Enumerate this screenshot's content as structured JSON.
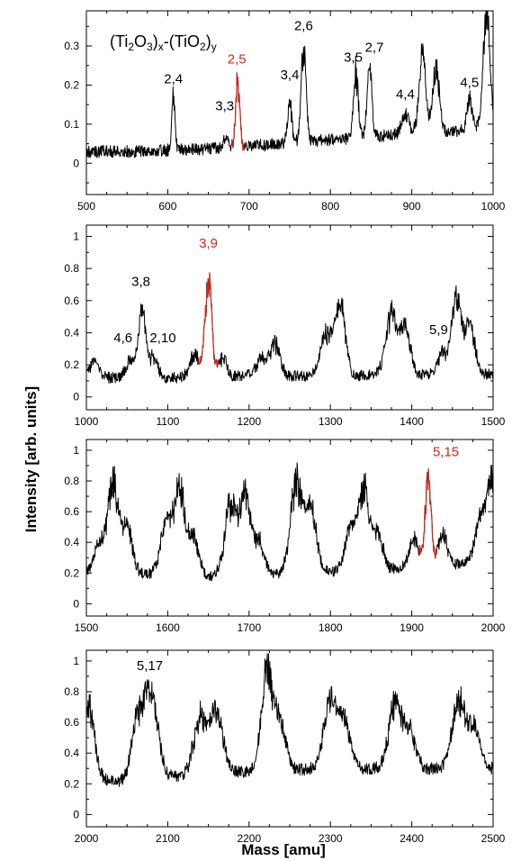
{
  "figure": {
    "ylabel": "Intensity [arb. units]",
    "xlabel": "Mass [amu]",
    "formula": {
      "a": "(Ti",
      "b": "2",
      "c": "O",
      "d": "3",
      "e": ")",
      "f": "x",
      "g": "-(TiO",
      "h": "2",
      "i": ")",
      "j": "y"
    },
    "colors": {
      "trace": "#000000",
      "highlight": "#c8281e"
    }
  },
  "chart_data": [
    {
      "type": "line",
      "xlim": [
        500,
        1000
      ],
      "ylim": [
        -0.08,
        0.39
      ],
      "xticks": [
        500,
        600,
        700,
        800,
        900,
        1000
      ],
      "xtick_labels": [
        "500",
        "600",
        "700",
        "800",
        "900",
        "1000"
      ],
      "yticks": [
        0,
        0.1,
        0.2,
        0.3
      ],
      "ytick_labels": [
        "0",
        "0.1",
        "0.2",
        "0.3"
      ],
      "baseline": [
        [
          500,
          0.03
        ],
        [
          560,
          0.03
        ],
        [
          620,
          0.035
        ],
        [
          680,
          0.04
        ],
        [
          740,
          0.05
        ],
        [
          800,
          0.06
        ],
        [
          860,
          0.07
        ],
        [
          900,
          0.08
        ],
        [
          950,
          0.08
        ],
        [
          1000,
          0.1
        ]
      ],
      "noise": 0.016,
      "peaks": [
        {
          "x": 607,
          "h": 0.13,
          "w": 2
        },
        {
          "x": 672,
          "h": 0.03,
          "w": 3
        },
        {
          "x": 686,
          "h": 0.16,
          "w": 2.5,
          "highlight": true
        },
        {
          "x": 750,
          "h": 0.11,
          "w": 2.5
        },
        {
          "x": 767,
          "h": 0.25,
          "w": 3
        },
        {
          "x": 831,
          "h": 0.17,
          "w": 3
        },
        {
          "x": 848,
          "h": 0.17,
          "w": 3
        },
        {
          "x": 892,
          "h": 0.05,
          "w": 4
        },
        {
          "x": 913,
          "h": 0.2,
          "w": 4
        },
        {
          "x": 930,
          "h": 0.16,
          "w": 4
        },
        {
          "x": 971,
          "h": 0.08,
          "w": 3
        },
        {
          "x": 992,
          "h": 0.3,
          "w": 4
        }
      ],
      "labels": [
        {
          "text": "2,4",
          "x": 607,
          "y": 0.205
        },
        {
          "text": "3,3",
          "x": 670,
          "y": 0.135
        },
        {
          "text": "2,5",
          "x": 685,
          "y": 0.255,
          "highlight": true
        },
        {
          "text": "3,4",
          "x": 750,
          "y": 0.215
        },
        {
          "text": "2,6",
          "x": 767,
          "y": 0.34
        },
        {
          "text": "3,5",
          "x": 828,
          "y": 0.26
        },
        {
          "text": "2,7",
          "x": 854,
          "y": 0.285
        },
        {
          "text": "4,4",
          "x": 892,
          "y": 0.165
        },
        {
          "text": "4,5",
          "x": 971,
          "y": 0.195
        }
      ]
    },
    {
      "type": "line",
      "xlim": [
        1000,
        1500
      ],
      "ylim": [
        -0.08,
        1.07
      ],
      "xticks": [
        1000,
        1100,
        1200,
        1300,
        1400,
        1500
      ],
      "xtick_labels": [
        "1000",
        "1100",
        "1200",
        "1300",
        "1400",
        "1500"
      ],
      "yticks": [
        0,
        0.2,
        0.4,
        0.6,
        0.8,
        1
      ],
      "ytick_labels": [
        "0",
        "0.2",
        "0.4",
        "0.6",
        "0.8",
        "1"
      ],
      "baseline": [
        [
          1000,
          0.12
        ],
        [
          1100,
          0.12
        ],
        [
          1200,
          0.13
        ],
        [
          1300,
          0.13
        ],
        [
          1400,
          0.14
        ],
        [
          1500,
          0.14
        ]
      ],
      "noise": 0.035,
      "peaks": [
        {
          "x": 1010,
          "h": 0.1,
          "w": 6
        },
        {
          "x": 1053,
          "h": 0.1,
          "w": 5
        },
        {
          "x": 1068,
          "h": 0.4,
          "w": 5
        },
        {
          "x": 1083,
          "h": 0.12,
          "w": 5
        },
        {
          "x": 1133,
          "h": 0.14,
          "w": 6
        },
        {
          "x": 1150,
          "h": 0.6,
          "w": 4,
          "highlight": true
        },
        {
          "x": 1167,
          "h": 0.12,
          "w": 5
        },
        {
          "x": 1215,
          "h": 0.1,
          "w": 7
        },
        {
          "x": 1232,
          "h": 0.2,
          "w": 6
        },
        {
          "x": 1295,
          "h": 0.26,
          "w": 7
        },
        {
          "x": 1312,
          "h": 0.46,
          "w": 6
        },
        {
          "x": 1375,
          "h": 0.38,
          "w": 7
        },
        {
          "x": 1392,
          "h": 0.3,
          "w": 6
        },
        {
          "x": 1437,
          "h": 0.12,
          "w": 6
        },
        {
          "x": 1455,
          "h": 0.48,
          "w": 6
        },
        {
          "x": 1472,
          "h": 0.3,
          "w": 6
        }
      ],
      "labels": [
        {
          "text": "4,6",
          "x": 1045,
          "y": 0.34
        },
        {
          "text": "3,8",
          "x": 1067,
          "y": 0.69
        },
        {
          "text": "2,10",
          "x": 1094,
          "y": 0.34
        },
        {
          "text": "3,9",
          "x": 1150,
          "y": 0.93,
          "highlight": true
        },
        {
          "text": "5,9",
          "x": 1433,
          "y": 0.39
        }
      ]
    },
    {
      "type": "line",
      "xlim": [
        1500,
        2000
      ],
      "ylim": [
        -0.08,
        1.07
      ],
      "xticks": [
        1500,
        1600,
        1700,
        1800,
        1900,
        2000
      ],
      "xtick_labels": [
        "1500",
        "1600",
        "1700",
        "1800",
        "1900",
        "2000"
      ],
      "yticks": [
        0,
        0.2,
        0.4,
        0.6,
        0.8,
        1
      ],
      "ytick_labels": [
        "0",
        "0.2",
        "0.4",
        "0.6",
        "0.8",
        "1"
      ],
      "baseline": [
        [
          1500,
          0.2
        ],
        [
          1550,
          0.2
        ],
        [
          1650,
          0.18
        ],
        [
          1750,
          0.2
        ],
        [
          1850,
          0.22
        ],
        [
          1950,
          0.25
        ],
        [
          2000,
          0.28
        ]
      ],
      "noise": 0.035,
      "peaks": [
        {
          "x": 1515,
          "h": 0.18,
          "w": 6
        },
        {
          "x": 1533,
          "h": 0.58,
          "w": 7
        },
        {
          "x": 1551,
          "h": 0.28,
          "w": 6
        },
        {
          "x": 1598,
          "h": 0.32,
          "w": 7
        },
        {
          "x": 1615,
          "h": 0.54,
          "w": 7
        },
        {
          "x": 1633,
          "h": 0.22,
          "w": 6
        },
        {
          "x": 1677,
          "h": 0.44,
          "w": 7
        },
        {
          "x": 1695,
          "h": 0.5,
          "w": 7
        },
        {
          "x": 1713,
          "h": 0.2,
          "w": 6
        },
        {
          "x": 1758,
          "h": 0.58,
          "w": 7
        },
        {
          "x": 1776,
          "h": 0.4,
          "w": 7
        },
        {
          "x": 1823,
          "h": 0.25,
          "w": 6
        },
        {
          "x": 1840,
          "h": 0.54,
          "w": 7
        },
        {
          "x": 1858,
          "h": 0.25,
          "w": 6
        },
        {
          "x": 1903,
          "h": 0.18,
          "w": 6
        },
        {
          "x": 1920,
          "h": 0.58,
          "w": 3.5,
          "highlight": true
        },
        {
          "x": 1938,
          "h": 0.2,
          "w": 6
        },
        {
          "x": 1985,
          "h": 0.28,
          "w": 7
        },
        {
          "x": 2000,
          "h": 0.5,
          "w": 7
        }
      ],
      "labels": [
        {
          "text": "5,15",
          "x": 1942,
          "y": 0.96,
          "highlight": true
        }
      ]
    },
    {
      "type": "line",
      "xlim": [
        2000,
        2500
      ],
      "ylim": [
        -0.08,
        1.07
      ],
      "xticks": [
        2000,
        2100,
        2200,
        2300,
        2400,
        2500
      ],
      "xtick_labels": [
        "2000",
        "2100",
        "2200",
        "2300",
        "2400",
        "2500"
      ],
      "yticks": [
        0,
        0.2,
        0.4,
        0.6,
        0.8,
        1
      ],
      "ytick_labels": [
        "0",
        "0.2",
        "0.4",
        "0.6",
        "0.8",
        "1"
      ],
      "baseline": [
        [
          2000,
          0.25
        ],
        [
          2050,
          0.2
        ],
        [
          2100,
          0.25
        ],
        [
          2200,
          0.28
        ],
        [
          2300,
          0.3
        ],
        [
          2400,
          0.3
        ],
        [
          2500,
          0.3
        ]
      ],
      "noise": 0.04,
      "peaks": [
        {
          "x": 2003,
          "h": 0.45,
          "w": 7
        },
        {
          "x": 2063,
          "h": 0.38,
          "w": 8
        },
        {
          "x": 2080,
          "h": 0.52,
          "w": 8
        },
        {
          "x": 2140,
          "h": 0.36,
          "w": 8
        },
        {
          "x": 2160,
          "h": 0.38,
          "w": 8
        },
        {
          "x": 2222,
          "h": 0.62,
          "w": 7
        },
        {
          "x": 2238,
          "h": 0.3,
          "w": 7
        },
        {
          "x": 2300,
          "h": 0.44,
          "w": 8
        },
        {
          "x": 2318,
          "h": 0.28,
          "w": 7
        },
        {
          "x": 2380,
          "h": 0.42,
          "w": 8
        },
        {
          "x": 2398,
          "h": 0.22,
          "w": 7
        },
        {
          "x": 2458,
          "h": 0.44,
          "w": 8
        },
        {
          "x": 2477,
          "h": 0.26,
          "w": 7
        }
      ],
      "labels": [
        {
          "text": "5,17",
          "x": 2078,
          "y": 0.94
        }
      ]
    }
  ]
}
